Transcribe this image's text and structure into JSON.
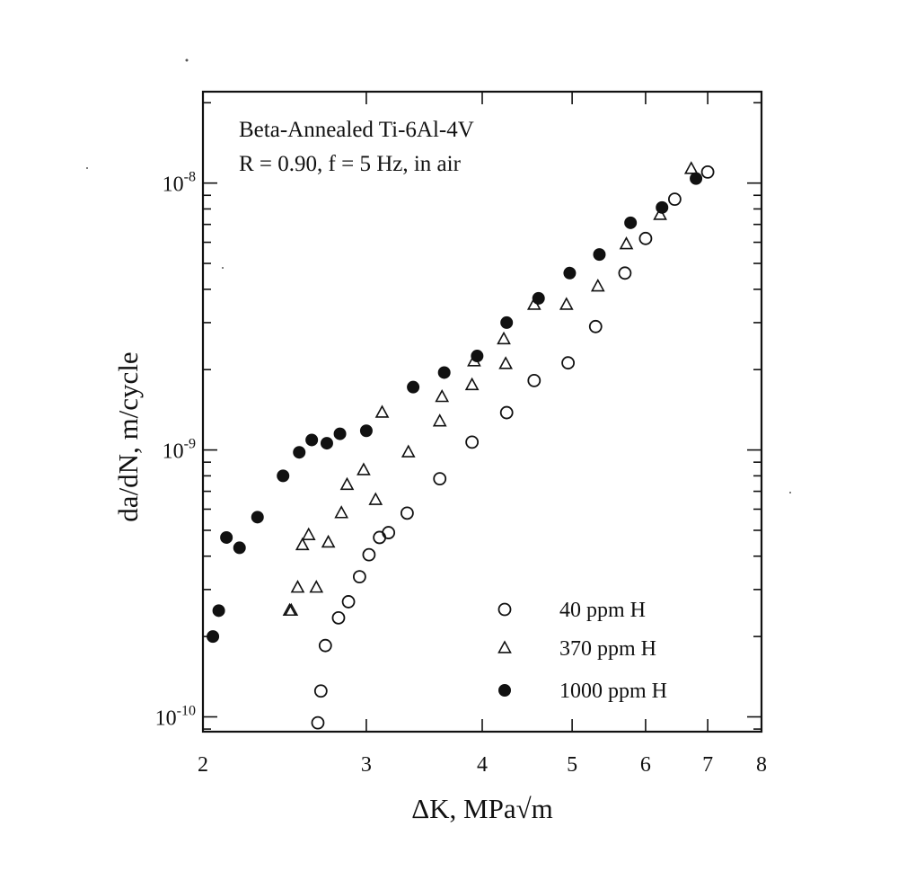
{
  "chart_data": {
    "type": "scatter",
    "title_lines": [
      "Beta-Annealed Ti-6Al-4V",
      "R = 0.90,  f = 5 Hz,  in air"
    ],
    "xlabel": "ΔK, MPa√m",
    "ylabel": "da/dN, m/cycle",
    "x_scale": "log",
    "y_scale": "log",
    "xlim": [
      2,
      8
    ],
    "ylim": [
      8.8e-11,
      2.2e-08
    ],
    "x_tick_values": [
      2,
      3,
      4,
      5,
      6,
      7,
      8
    ],
    "x_tick_labels": [
      "2",
      "3",
      "4",
      "5",
      "6",
      "7",
      "8"
    ],
    "y_labeled_ticks": [
      {
        "value": 1e-10,
        "base": "10",
        "exp": "-10"
      },
      {
        "value": 1e-09,
        "base": "10",
        "exp": "-9"
      },
      {
        "value": 1e-08,
        "base": "10",
        "exp": "-8"
      }
    ],
    "grid": false,
    "legend_position": "bottom-right",
    "series": [
      {
        "name": "40 ppm H",
        "marker": "open-circle",
        "points": [
          [
            2.66,
            9.5e-11
          ],
          [
            2.68,
            1.25e-10
          ],
          [
            2.71,
            1.85e-10
          ],
          [
            2.8,
            2.35e-10
          ],
          [
            2.87,
            2.7e-10
          ],
          [
            2.95,
            3.35e-10
          ],
          [
            3.02,
            4.05e-10
          ],
          [
            3.1,
            4.7e-10
          ],
          [
            3.17,
            4.9e-10
          ],
          [
            3.32,
            5.8e-10
          ],
          [
            3.6,
            7.8e-10
          ],
          [
            3.9,
            1.07e-09
          ],
          [
            4.25,
            1.38e-09
          ],
          [
            4.55,
            1.82e-09
          ],
          [
            4.95,
            2.12e-09
          ],
          [
            5.3,
            2.9e-09
          ],
          [
            5.7,
            4.6e-09
          ],
          [
            6.0,
            6.2e-09
          ],
          [
            6.45,
            8.7e-09
          ],
          [
            7.0,
            1.1e-08
          ]
        ]
      },
      {
        "name": "370 ppm H",
        "marker": "open-triangle",
        "points": [
          [
            2.48,
            2.5e-10
          ],
          [
            2.49,
            2.5e-10
          ],
          [
            2.53,
            3.05e-10
          ],
          [
            2.56,
            4.4e-10
          ],
          [
            2.6,
            4.8e-10
          ],
          [
            2.65,
            3.05e-10
          ],
          [
            2.73,
            4.5e-10
          ],
          [
            2.82,
            5.8e-10
          ],
          [
            2.86,
            7.4e-10
          ],
          [
            2.98,
            8.4e-10
          ],
          [
            3.07,
            6.5e-10
          ],
          [
            3.12,
            1.38e-09
          ],
          [
            3.33,
            9.8e-10
          ],
          [
            3.6,
            1.28e-09
          ],
          [
            3.62,
            1.58e-09
          ],
          [
            3.9,
            1.75e-09
          ],
          [
            3.92,
            2.15e-09
          ],
          [
            4.22,
            2.6e-09
          ],
          [
            4.24,
            2.1e-09
          ],
          [
            4.55,
            3.5e-09
          ],
          [
            4.93,
            3.5e-09
          ],
          [
            5.33,
            4.1e-09
          ],
          [
            5.72,
            5.9e-09
          ],
          [
            6.22,
            7.6e-09
          ],
          [
            6.72,
            1.13e-08
          ]
        ]
      },
      {
        "name": "1000 ppm H",
        "marker": "filled-circle",
        "points": [
          [
            2.05,
            2e-10
          ],
          [
            2.08,
            2.5e-10
          ],
          [
            2.12,
            4.7e-10
          ],
          [
            2.19,
            4.3e-10
          ],
          [
            2.29,
            5.6e-10
          ],
          [
            2.44,
            8e-10
          ],
          [
            2.54,
            9.8e-10
          ],
          [
            2.62,
            1.09e-09
          ],
          [
            2.72,
            1.06e-09
          ],
          [
            2.81,
            1.15e-09
          ],
          [
            3.0,
            1.18e-09
          ],
          [
            3.37,
            1.72e-09
          ],
          [
            3.64,
            1.95e-09
          ],
          [
            3.95,
            2.25e-09
          ],
          [
            4.25,
            3e-09
          ],
          [
            4.6,
            3.7e-09
          ],
          [
            4.97,
            4.6e-09
          ],
          [
            5.35,
            5.4e-09
          ],
          [
            5.78,
            7.1e-09
          ],
          [
            6.25,
            8.1e-09
          ],
          [
            6.8,
            1.04e-08
          ]
        ]
      }
    ]
  }
}
